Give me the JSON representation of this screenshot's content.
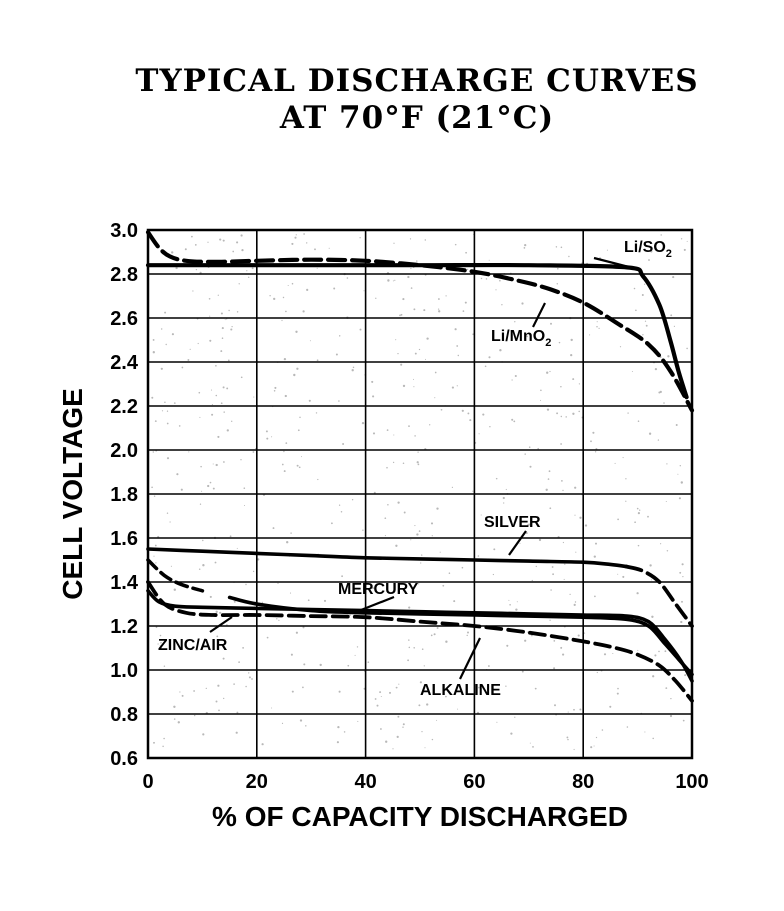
{
  "chart_data": {
    "type": "line",
    "title": [
      "TYPICAL DISCHARGE CURVES",
      "AT 70°F (21°C)"
    ],
    "xlabel": "% OF CAPACITY DISCHARGED",
    "ylabel": "CELL VOLTAGE",
    "xlim": [
      0,
      100
    ],
    "ylim": [
      0.6,
      3.0
    ],
    "xticks": [
      0,
      20,
      40,
      60,
      80,
      100
    ],
    "yticks": [
      0.6,
      0.8,
      1.0,
      1.2,
      1.4,
      1.6,
      1.8,
      2.0,
      2.2,
      2.4,
      2.6,
      2.8,
      3.0
    ],
    "xtick_labels": [
      "0",
      "20",
      "40",
      "60",
      "80",
      "100"
    ],
    "ytick_labels": [
      "0.6",
      "0.8",
      "1.0",
      "1.2",
      "1.4",
      "1.6",
      "1.8",
      "2.0",
      "2.2",
      "2.4",
      "2.6",
      "2.8",
      "3.0"
    ],
    "grid": true,
    "series": [
      {
        "name": "Li/SO2",
        "label": "Li/SO",
        "label_subscript": "2",
        "style": "solid-thick",
        "color": "#000000",
        "x": [
          0,
          10,
          30,
          50,
          70,
          88,
          91,
          94,
          96,
          97.5,
          99
        ],
        "y": [
          2.84,
          2.84,
          2.84,
          2.84,
          2.84,
          2.83,
          2.79,
          2.66,
          2.5,
          2.36,
          2.24
        ]
      },
      {
        "name": "Li/MnO2",
        "label": "Li/MnO",
        "label_subscript": "2",
        "style": "dashed-thick",
        "color": "#000000",
        "x": [
          0,
          2,
          4,
          7,
          12,
          20,
          30,
          40,
          50,
          60,
          68,
          74,
          80,
          86,
          92,
          96,
          100
        ],
        "y": [
          2.99,
          2.92,
          2.88,
          2.86,
          2.855,
          2.86,
          2.865,
          2.86,
          2.84,
          2.81,
          2.77,
          2.73,
          2.67,
          2.58,
          2.48,
          2.36,
          2.18
        ]
      },
      {
        "name": "Silver",
        "label": "SILVER",
        "style": "solid-to-dashed",
        "color": "#000000",
        "x": [
          0,
          10,
          20,
          30,
          40,
          50,
          60,
          70,
          80,
          85,
          88,
          91,
          94,
          97,
          100
        ],
        "y": [
          1.55,
          1.54,
          1.53,
          1.52,
          1.51,
          1.505,
          1.5,
          1.495,
          1.49,
          1.48,
          1.47,
          1.45,
          1.4,
          1.3,
          1.2
        ]
      },
      {
        "name": "Mercury",
        "label": "MERCURY",
        "style": "dashed-to-solid",
        "color": "#000000",
        "x": [
          0,
          3,
          6,
          10,
          15,
          20,
          30,
          40,
          50,
          60,
          70,
          80,
          88,
          92,
          95,
          97.5,
          100
        ],
        "y": [
          1.5,
          1.43,
          1.39,
          1.36,
          1.33,
          1.3,
          1.27,
          1.26,
          1.255,
          1.25,
          1.245,
          1.24,
          1.23,
          1.2,
          1.12,
          1.05,
          0.98
        ]
      },
      {
        "name": "Zinc/Air",
        "label": "ZINC/AIR",
        "style": "solid",
        "color": "#000000",
        "x": [
          0,
          2,
          5,
          10,
          20,
          30,
          40,
          50,
          60,
          70,
          80,
          88,
          92,
          95,
          98,
          100
        ],
        "y": [
          1.36,
          1.31,
          1.29,
          1.285,
          1.28,
          1.275,
          1.27,
          1.265,
          1.26,
          1.255,
          1.25,
          1.245,
          1.22,
          1.14,
          1.04,
          0.95
        ]
      },
      {
        "name": "Alkaline",
        "label": "ALKALINE",
        "style": "dashed",
        "color": "#000000",
        "x": [
          0,
          3,
          7,
          12,
          20,
          30,
          40,
          50,
          60,
          70,
          80,
          86,
          90,
          94,
          97,
          100
        ],
        "y": [
          1.4,
          1.3,
          1.26,
          1.25,
          1.25,
          1.245,
          1.24,
          1.22,
          1.2,
          1.17,
          1.13,
          1.1,
          1.07,
          1.02,
          0.95,
          0.86
        ]
      }
    ]
  }
}
